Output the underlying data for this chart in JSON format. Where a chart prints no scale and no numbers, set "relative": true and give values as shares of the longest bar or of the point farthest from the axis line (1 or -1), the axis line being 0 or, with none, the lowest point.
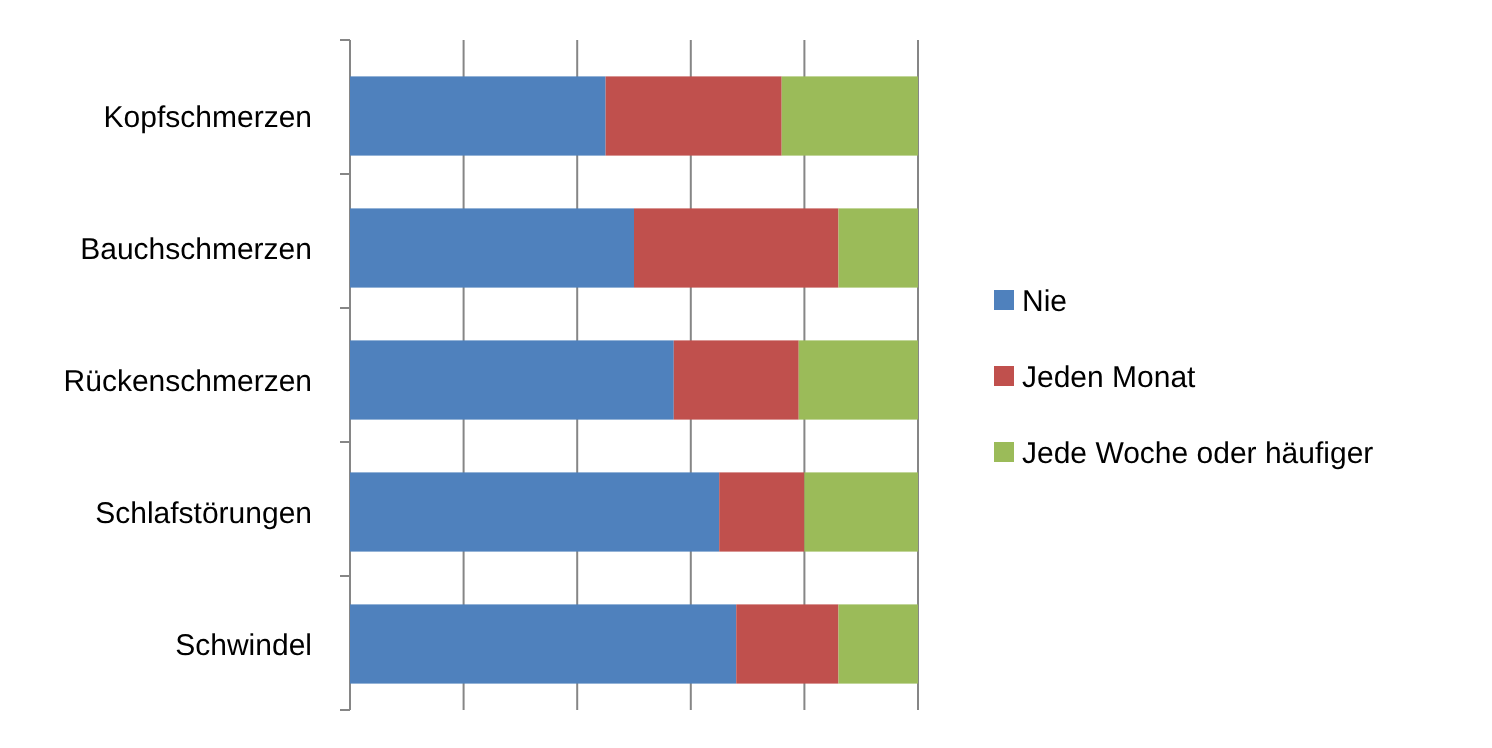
{
  "chart_data": {
    "type": "bar",
    "orientation": "horizontal",
    "stacked": true,
    "relative": true,
    "grid": "x",
    "legend": "right",
    "categories": [
      "Kopfschmerzen",
      "Bauchschmerzen",
      "Rückenschmerzen",
      "Schlafstörungen",
      "Schwindel"
    ],
    "series": [
      {
        "name": "Nie",
        "color": "#4f81bd",
        "values": [
          0.45,
          0.5,
          0.57,
          0.65,
          0.68
        ]
      },
      {
        "name": "Jeden Monat",
        "color": "#c0504d",
        "values": [
          0.31,
          0.36,
          0.22,
          0.15,
          0.18
        ]
      },
      {
        "name": "Jede Woche oder häufiger",
        "color": "#9bbb59",
        "values": [
          0.24,
          0.14,
          0.21,
          0.2,
          0.14
        ]
      }
    ]
  }
}
